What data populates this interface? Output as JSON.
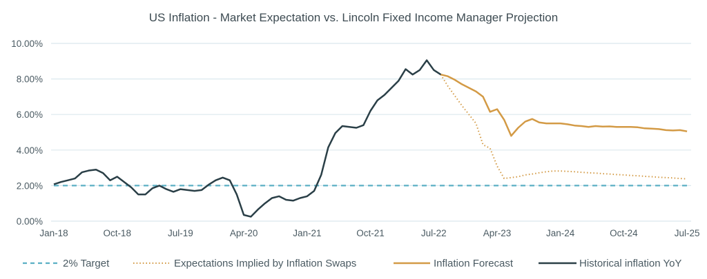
{
  "chart_data": {
    "type": "line",
    "title": "US Inflation - Market Expectation vs. Lincoln Fixed Income Manager Projection",
    "xlabel": "",
    "ylabel": "",
    "ylim": [
      0,
      10
    ],
    "yticks": [
      "0.00%",
      "2.00%",
      "4.00%",
      "6.00%",
      "8.00%",
      "10.00%"
    ],
    "ytick_values": [
      0,
      2,
      4,
      6,
      8,
      10
    ],
    "x_start": "Jan-18",
    "x_unit": "month",
    "xlim_months": [
      0,
      91
    ],
    "xticks": [
      {
        "label": "Jan-18",
        "month": 0
      },
      {
        "label": "Oct-18",
        "month": 9
      },
      {
        "label": "Jul-19",
        "month": 18
      },
      {
        "label": "Apr-20",
        "month": 27
      },
      {
        "label": "Jan-21",
        "month": 36
      },
      {
        "label": "Oct-21",
        "month": 45
      },
      {
        "label": "Jul-22",
        "month": 54
      },
      {
        "label": "Apr-23",
        "month": 63
      },
      {
        "label": "Jan-24",
        "month": 72
      },
      {
        "label": "Oct-24",
        "month": 81
      },
      {
        "label": "Jul-25",
        "month": 90
      }
    ],
    "grid": true,
    "legend_position": "bottom",
    "series": [
      {
        "name": "2% Target",
        "style": "dashed",
        "color": "#5aafc4",
        "start_month": 0,
        "values": [
          2,
          2
        ]
      },
      {
        "name": "Expectations Implied by Inflation Swaps",
        "style": "dotted",
        "color": "#d39a45",
        "start_month": 55,
        "values": [
          8.25,
          7.6,
          7.05,
          6.5,
          6.0,
          5.5,
          4.3,
          4.1,
          3.1,
          2.4,
          2.45,
          2.5,
          2.6,
          2.65,
          2.72,
          2.78,
          2.82,
          2.82,
          2.8,
          2.78,
          2.75,
          2.72,
          2.7,
          2.67,
          2.65,
          2.62,
          2.6,
          2.57,
          2.55,
          2.52,
          2.5,
          2.47,
          2.45,
          2.43,
          2.4,
          2.38
        ]
      },
      {
        "name": "Inflation Forecast",
        "style": "solid",
        "color": "#d39a45",
        "start_month": 55,
        "values": [
          8.25,
          8.15,
          7.95,
          7.7,
          7.5,
          7.3,
          7.0,
          6.15,
          6.3,
          5.7,
          4.8,
          5.25,
          5.6,
          5.75,
          5.55,
          5.5,
          5.5,
          5.5,
          5.45,
          5.38,
          5.35,
          5.3,
          5.35,
          5.32,
          5.33,
          5.3,
          5.3,
          5.3,
          5.28,
          5.22,
          5.2,
          5.18,
          5.12,
          5.1,
          5.12,
          5.05
        ]
      },
      {
        "name": "Historical inflation YoY",
        "style": "solid",
        "color": "#2a3f47",
        "start_month": 0,
        "values": [
          2.07,
          2.2,
          2.3,
          2.4,
          2.75,
          2.85,
          2.9,
          2.7,
          2.3,
          2.5,
          2.2,
          1.9,
          1.5,
          1.5,
          1.85,
          2.0,
          1.8,
          1.65,
          1.8,
          1.75,
          1.7,
          1.75,
          2.05,
          2.3,
          2.45,
          2.3,
          1.5,
          0.35,
          0.25,
          0.65,
          1.0,
          1.3,
          1.4,
          1.2,
          1.15,
          1.3,
          1.4,
          1.7,
          2.6,
          4.15,
          4.95,
          5.35,
          5.3,
          5.25,
          5.4,
          6.2,
          6.8,
          7.1,
          7.5,
          7.9,
          8.55,
          8.25,
          8.5,
          9.05,
          8.5,
          8.25
        ]
      }
    ]
  },
  "legend": {
    "items": [
      {
        "label": "2% Target",
        "style": "dashed",
        "color": "#5aafc4"
      },
      {
        "label": "Expectations Implied by Inflation Swaps",
        "style": "dotted",
        "color": "#d39a45"
      },
      {
        "label": "Inflation Forecast",
        "style": "solid",
        "color": "#d39a45"
      },
      {
        "label": "Historical inflation YoY",
        "style": "solid",
        "color": "#2a3f47"
      }
    ]
  }
}
